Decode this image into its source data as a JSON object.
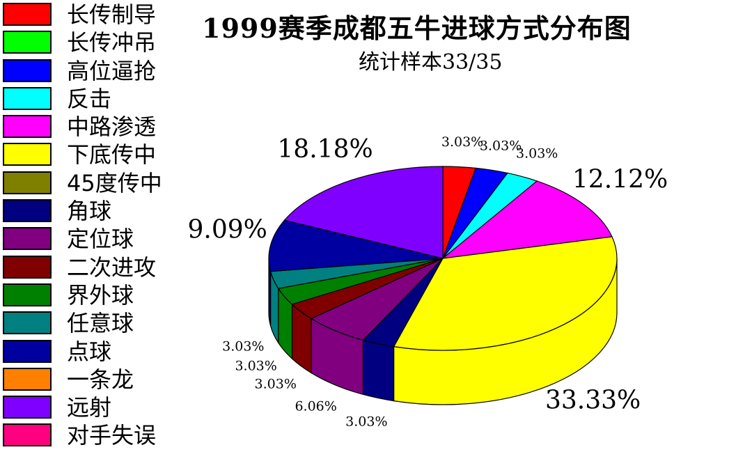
{
  "chart_data": {
    "type": "pie",
    "title": "1999赛季成都五牛进球方式分布图",
    "subtitle": "统计样本33/35",
    "legend": [
      {
        "name": "长传制导",
        "color": "#FF0000"
      },
      {
        "name": "长传冲吊",
        "color": "#00FF00"
      },
      {
        "name": "高位逼抢",
        "color": "#0000FF"
      },
      {
        "name": "反击",
        "color": "#00FFFF"
      },
      {
        "name": "中路渗透",
        "color": "#FF00FF"
      },
      {
        "name": "下底传中",
        "color": "#FFFF00"
      },
      {
        "name": "45度传中",
        "color": "#808000"
      },
      {
        "name": "角球",
        "color": "#000080"
      },
      {
        "name": "定位球",
        "color": "#800080"
      },
      {
        "name": "二次进攻",
        "color": "#800000"
      },
      {
        "name": "界外球",
        "color": "#008000"
      },
      {
        "name": "任意球",
        "color": "#008080"
      },
      {
        "name": "点球",
        "color": "#0000A0"
      },
      {
        "name": "一条龙",
        "color": "#FF8000"
      },
      {
        "name": "远射",
        "color": "#8000FF"
      },
      {
        "name": "对手失误",
        "color": "#FF0080"
      }
    ],
    "slices": [
      {
        "name": "长传制导",
        "value": 3.03,
        "label": "3.03%",
        "color": "#FF0000"
      },
      {
        "name": "高位逼抢",
        "value": 3.03,
        "label": "3.03%",
        "color": "#0000FF"
      },
      {
        "name": "反击",
        "value": 3.03,
        "label": "3.03%",
        "color": "#00FFFF"
      },
      {
        "name": "中路渗透",
        "value": 12.12,
        "label": "12.12%",
        "color": "#FF00FF"
      },
      {
        "name": "下底传中",
        "value": 33.33,
        "label": "33.33%",
        "color": "#FFFF00"
      },
      {
        "name": "角球",
        "value": 3.03,
        "label": "3.03%",
        "color": "#000080"
      },
      {
        "name": "定位球",
        "value": 6.06,
        "label": "6.06%",
        "color": "#800080"
      },
      {
        "name": "二次进攻",
        "value": 3.03,
        "label": "3.03%",
        "color": "#800000"
      },
      {
        "name": "界外球",
        "value": 3.03,
        "label": "3.03%",
        "color": "#008000"
      },
      {
        "name": "任意球",
        "value": 3.03,
        "label": "3.03%",
        "color": "#008080"
      },
      {
        "name": "点球",
        "value": 9.09,
        "label": "9.09%",
        "color": "#0000A0"
      },
      {
        "name": "远射",
        "value": 18.18,
        "label": "18.18%",
        "color": "#8000FF"
      }
    ],
    "legend_position": "left",
    "grid": false
  }
}
